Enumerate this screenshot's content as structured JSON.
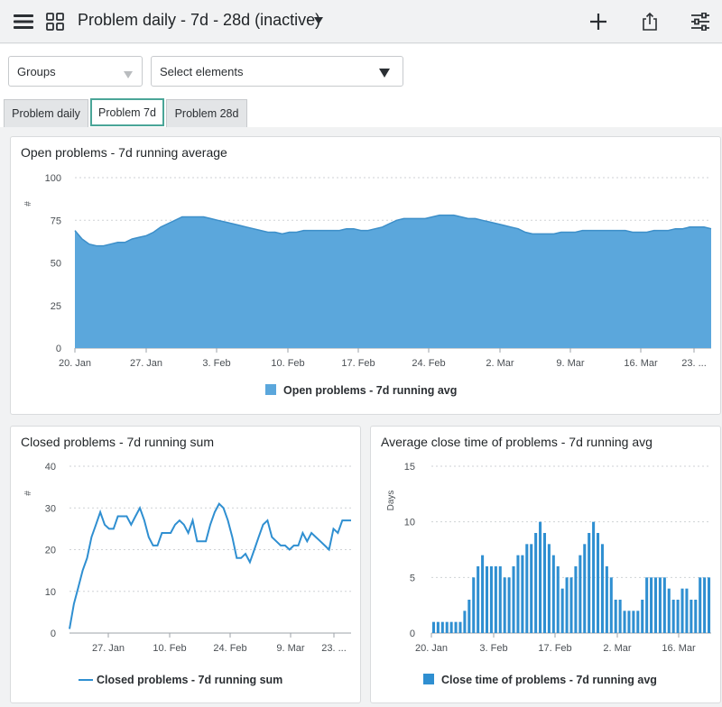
{
  "header": {
    "title": "Problem daily - 7d - 28d (inactive)",
    "icons": [
      "menu-icon",
      "dashboard-grid-icon",
      "caret-down-icon",
      "plus-icon",
      "share-icon",
      "sliders-icon"
    ]
  },
  "filters": {
    "groups_label": "Groups",
    "elements_label": "Select elements"
  },
  "tabs": [
    {
      "label": "Problem daily",
      "active": false
    },
    {
      "label": "Problem 7d",
      "active": true
    },
    {
      "label": "Problem 28d",
      "active": false
    }
  ],
  "charts": {
    "open": {
      "title": "Open problems - 7d running average",
      "unit": "#",
      "legend": "Open problems - 7d running avg",
      "color": "#5ba7dc"
    },
    "closed": {
      "title": "Closed problems - 7d running sum",
      "unit": "#",
      "legend": "Closed problems - 7d running sum",
      "color": "#2f8fd1"
    },
    "close_time": {
      "title": "Average close time of problems - 7d running avg",
      "unit": "Days",
      "legend": "Close time of problems - 7d running avg",
      "color": "#2f8fd1"
    }
  },
  "chart_data": [
    {
      "type": "area",
      "title": "Open problems - 7d running average",
      "ylabel": "#",
      "ylim": [
        0,
        100
      ],
      "yticks": [
        "0",
        "25",
        "50",
        "75",
        "100"
      ],
      "xticks": [
        "20. Jan",
        "27. Jan",
        "3. Feb",
        "10. Feb",
        "17. Feb",
        "24. Feb",
        "2. Mar",
        "9. Mar",
        "16. Mar",
        "23. ..."
      ],
      "grid": true,
      "legend": "bottom",
      "series": [
        {
          "name": "Open problems - 7d running avg",
          "values": [
            69,
            64,
            61,
            60,
            60,
            61,
            62,
            62,
            64,
            65,
            66,
            68,
            71,
            73,
            75,
            77,
            77,
            77,
            77,
            76,
            75,
            74,
            73,
            72,
            71,
            70,
            69,
            68,
            68,
            67,
            68,
            68,
            69,
            69,
            69,
            69,
            69,
            69,
            70,
            70,
            69,
            69,
            70,
            71,
            73,
            75,
            76,
            76,
            76,
            76,
            77,
            78,
            78,
            78,
            77,
            76,
            76,
            75,
            74,
            73,
            72,
            71,
            70,
            68,
            67,
            67,
            67,
            67,
            68,
            68,
            68,
            69,
            69,
            69,
            69,
            69,
            69,
            69,
            68,
            68,
            68,
            69,
            69,
            69,
            70,
            70,
            71,
            71,
            71,
            70
          ]
        }
      ]
    },
    {
      "type": "line",
      "title": "Closed problems - 7d running sum",
      "ylabel": "#",
      "ylim": [
        0,
        40
      ],
      "yticks": [
        "0",
        "10",
        "20",
        "30",
        "40"
      ],
      "xticks": [
        "27. Jan",
        "10. Feb",
        "24. Feb",
        "9. Mar",
        "23. ..."
      ],
      "grid": true,
      "legend": "bottom",
      "series": [
        {
          "name": "Closed problems - 7d running sum",
          "values": [
            1,
            7,
            11,
            15,
            18,
            23,
            26,
            29,
            26,
            25,
            25,
            28,
            28,
            28,
            26,
            28,
            30,
            27,
            23,
            21,
            21,
            24,
            24,
            24,
            26,
            27,
            26,
            24,
            27,
            22,
            22,
            22,
            26,
            29,
            31,
            30,
            27,
            23,
            18,
            18,
            19,
            17,
            20,
            23,
            26,
            27,
            23,
            22,
            21,
            21,
            20,
            21,
            21,
            24,
            22,
            24,
            23,
            22,
            21,
            20,
            25,
            24,
            27,
            27,
            27
          ]
        }
      ]
    },
    {
      "type": "bar",
      "title": "Average close time of problems - 7d running avg",
      "ylabel": "Days",
      "ylim": [
        0,
        15
      ],
      "yticks": [
        "0",
        "5",
        "10",
        "15"
      ],
      "xticks": [
        "20. Jan",
        "3. Feb",
        "17. Feb",
        "2. Mar",
        "16. Mar"
      ],
      "grid": true,
      "legend": "bottom",
      "series": [
        {
          "name": "Close time of problems - 7d running avg",
          "values": [
            1,
            1,
            1,
            1,
            1,
            1,
            1,
            2,
            3,
            5,
            6,
            7,
            6,
            6,
            6,
            6,
            5,
            5,
            6,
            7,
            7,
            8,
            8,
            9,
            10,
            9,
            8,
            7,
            6,
            4,
            5,
            5,
            6,
            7,
            8,
            9,
            10,
            9,
            8,
            6,
            5,
            3,
            3,
            2,
            2,
            2,
            2,
            3,
            5,
            5,
            5,
            5,
            5,
            4,
            3,
            3,
            4,
            4,
            3,
            3,
            5,
            5,
            5
          ]
        }
      ]
    }
  ]
}
